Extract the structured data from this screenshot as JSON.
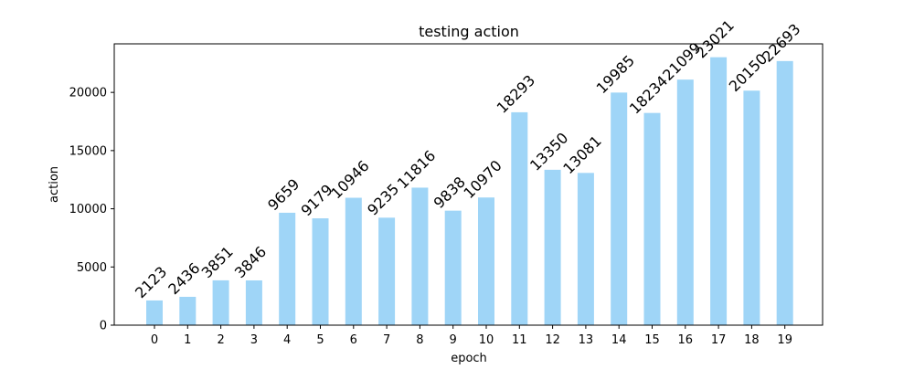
{
  "chart_data": {
    "type": "bar",
    "title": "testing action",
    "xlabel": "epoch",
    "ylabel": "action",
    "categories": [
      "0",
      "1",
      "2",
      "3",
      "4",
      "5",
      "6",
      "7",
      "8",
      "9",
      "10",
      "11",
      "12",
      "13",
      "14",
      "15",
      "16",
      "17",
      "18",
      "19"
    ],
    "values": [
      2123,
      2436,
      3851,
      3846,
      9659,
      9179,
      10946,
      9235,
      11816,
      9838,
      10970,
      18293,
      13350,
      13081,
      19985,
      18234,
      21099,
      23021,
      20150,
      22693
    ],
    "data_labels": [
      "2123",
      "2436",
      "3851",
      "3846",
      "9659",
      "9179",
      "10946",
      "9235",
      "11816",
      "9838",
      "10970",
      "18293",
      "13350",
      "13081",
      "19985",
      "18234",
      "21099",
      "23021",
      "20150",
      "22693"
    ],
    "yticks": [
      0,
      5000,
      10000,
      15000,
      20000
    ],
    "ytick_labels": [
      "0",
      "5000",
      "10000",
      "15000",
      "20000"
    ],
    "ylim": [
      0,
      24172
    ],
    "bar_color": "#9fd5f7",
    "grid": false,
    "legend": "none",
    "data_label_rotation_deg": 45
  }
}
